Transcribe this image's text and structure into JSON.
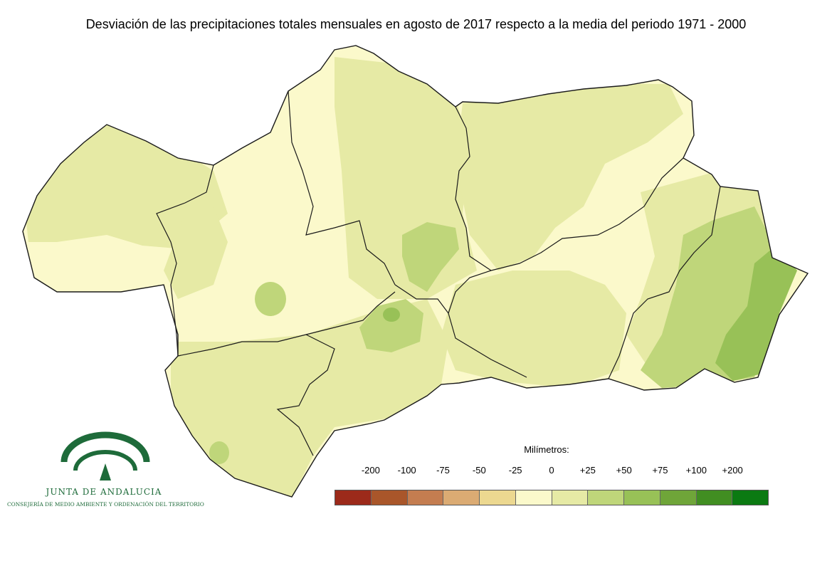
{
  "header": {
    "title": "Desviación de las precipitaciones totales mensuales en agosto de 2017 respecto a la media del periodo 1971 - 2000"
  },
  "legend": {
    "title": "Milímetros:",
    "ticks": [
      "-200",
      "-100",
      "-75",
      "-50",
      "-25",
      "0",
      "+25",
      "+50",
      "+75",
      "+100",
      "+200"
    ],
    "colors": [
      "#9c2a1a",
      "#a9562a",
      "#c47d50",
      "#dbab73",
      "#ecd890",
      "#fbf9cb",
      "#e6eaa5",
      "#bfd67a",
      "#98c157",
      "#6fa539",
      "#418e22",
      "#0b7a12"
    ]
  },
  "map": {
    "base_color": "#fbf9cb",
    "zone_colors": {
      "light": "#e6eaa5",
      "medium": "#bfd67a",
      "strong": "#98c157"
    },
    "border_color": "#1a1a1a"
  },
  "logo": {
    "name": "JUNTA DE ANDALUCIA",
    "subtitle": "CONSEJERÍA DE MEDIO AMBIENTE Y ORDENACIÓN DEL TERRITORIO",
    "color": "#1e6b3a"
  }
}
